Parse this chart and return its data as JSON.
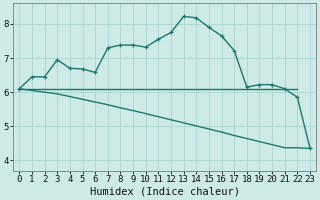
{
  "xlabel": "Humidex (Indice chaleur)",
  "bg_color": "#cdeae6",
  "line_color": "#1a7a6e",
  "grid_color": "#b0d8d2",
  "xlim": [
    -0.5,
    23.5
  ],
  "ylim": [
    3.7,
    8.6
  ],
  "yticks": [
    4,
    5,
    6,
    7,
    8
  ],
  "xticks": [
    0,
    1,
    2,
    3,
    4,
    5,
    6,
    7,
    8,
    9,
    10,
    11,
    12,
    13,
    14,
    15,
    16,
    17,
    18,
    19,
    20,
    21,
    22,
    23
  ],
  "line1_x": [
    0,
    1,
    2,
    3,
    4,
    5,
    6,
    7,
    8,
    9,
    10,
    11,
    12,
    13,
    14,
    15,
    16,
    17,
    18,
    19,
    20,
    21,
    22,
    23
  ],
  "line1_y": [
    6.1,
    6.45,
    6.45,
    6.95,
    6.7,
    6.68,
    6.58,
    7.3,
    7.38,
    7.38,
    7.32,
    7.55,
    7.75,
    8.22,
    8.18,
    7.9,
    7.65,
    7.22,
    6.15,
    6.22,
    6.22,
    6.1,
    5.85,
    4.35
  ],
  "line2_x": [
    0,
    22
  ],
  "line2_y": [
    6.1,
    6.1
  ],
  "line3_x": [
    0,
    1,
    2,
    3,
    4,
    5,
    6,
    7,
    8,
    9,
    10,
    11,
    12,
    13,
    14,
    15,
    16,
    17,
    18,
    19,
    20,
    21,
    22,
    23
  ],
  "line3_y": [
    6.1,
    6.05,
    6.0,
    5.95,
    5.87,
    5.79,
    5.71,
    5.63,
    5.54,
    5.46,
    5.37,
    5.28,
    5.19,
    5.1,
    5.01,
    4.92,
    4.83,
    4.73,
    4.64,
    4.55,
    4.46,
    4.37,
    4.37,
    4.35
  ],
  "linewidth": 1.0,
  "marker": "+",
  "marker_size": 3.5,
  "xlabel_fontsize": 7.5,
  "tick_fontsize": 6.5
}
